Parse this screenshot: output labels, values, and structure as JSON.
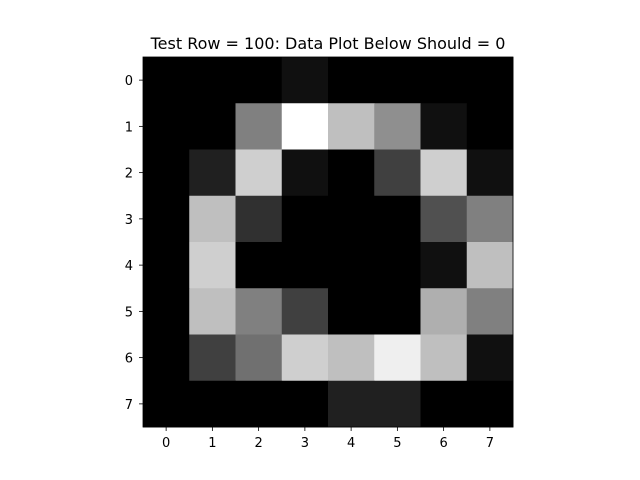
{
  "chart_data": {
    "type": "heatmap",
    "title": "Test Row = 100: Data Plot Below Should = 0",
    "xlabel": "",
    "ylabel": "",
    "colormap": "gray",
    "value_range": [
      0,
      16
    ],
    "x_ticks": [
      "0",
      "1",
      "2",
      "3",
      "4",
      "5",
      "6",
      "7"
    ],
    "y_ticks": [
      "0",
      "1",
      "2",
      "3",
      "4",
      "5",
      "6",
      "7"
    ],
    "grid": false,
    "values": [
      [
        0,
        0,
        0,
        1,
        0,
        0,
        0,
        0
      ],
      [
        0,
        0,
        8,
        16,
        12,
        9,
        1,
        0
      ],
      [
        0,
        2,
        13,
        1,
        0,
        4,
        13,
        1
      ],
      [
        0,
        12,
        3,
        0,
        0,
        0,
        5,
        8
      ],
      [
        0,
        13,
        0,
        0,
        0,
        0,
        1,
        12
      ],
      [
        0,
        12,
        8,
        4,
        0,
        0,
        11,
        8
      ],
      [
        0,
        4,
        7,
        13,
        12,
        15,
        12,
        1
      ],
      [
        0,
        0,
        0,
        0,
        2,
        2,
        0,
        0
      ]
    ]
  }
}
